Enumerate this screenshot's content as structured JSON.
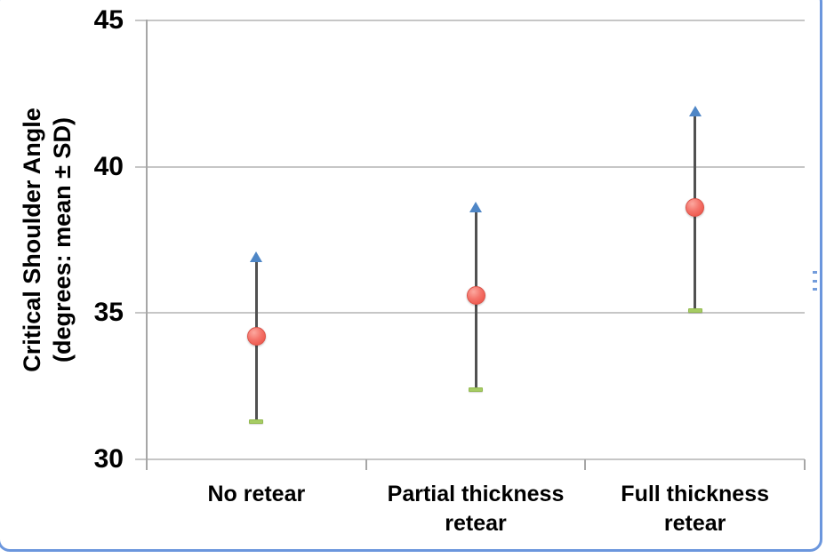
{
  "frame": {
    "border_color": "#6b96dd"
  },
  "chart_data": {
    "type": "scatter",
    "title": "",
    "xlabel": "",
    "ylabel": "Critical Shoulder Angle (degrees: mean ± SD)",
    "ylabel_line1": "Critical Shoulder Angle",
    "ylabel_line2": "(degrees: mean ± SD)",
    "categories": [
      "No retear",
      "Partial thickness retear",
      "Full thickness retear"
    ],
    "category_lines": [
      [
        "No retear"
      ],
      [
        "Partial thickness",
        "retear"
      ],
      [
        "Full thickness",
        "retear"
      ]
    ],
    "yticks": [
      30,
      35,
      40,
      45
    ],
    "ylim": [
      30,
      45
    ],
    "grid": true,
    "legend": false,
    "series": [
      {
        "name": "Critical Shoulder Angle (mean ± SD)",
        "points": [
          {
            "category": "No retear",
            "mean": 34.2,
            "sd": 2.9,
            "upper": 37.1,
            "lower": 31.3
          },
          {
            "category": "Partial thickness retear",
            "mean": 35.6,
            "sd": 3.2,
            "upper": 38.8,
            "lower": 32.4
          },
          {
            "category": "Full thickness retear",
            "mean": 38.6,
            "sd": 3.5,
            "upper": 42.1,
            "lower": 35.1
          }
        ]
      }
    ],
    "marker_colors": {
      "mean_marker": "#f3685f",
      "upper_sd_arrow": "#4e86c6",
      "lower_sd_cap": "#a6cc63",
      "error_line": "#515151",
      "gridline": "#c6c6c6",
      "axis": "#a6a6a6",
      "text": "#000000"
    }
  }
}
